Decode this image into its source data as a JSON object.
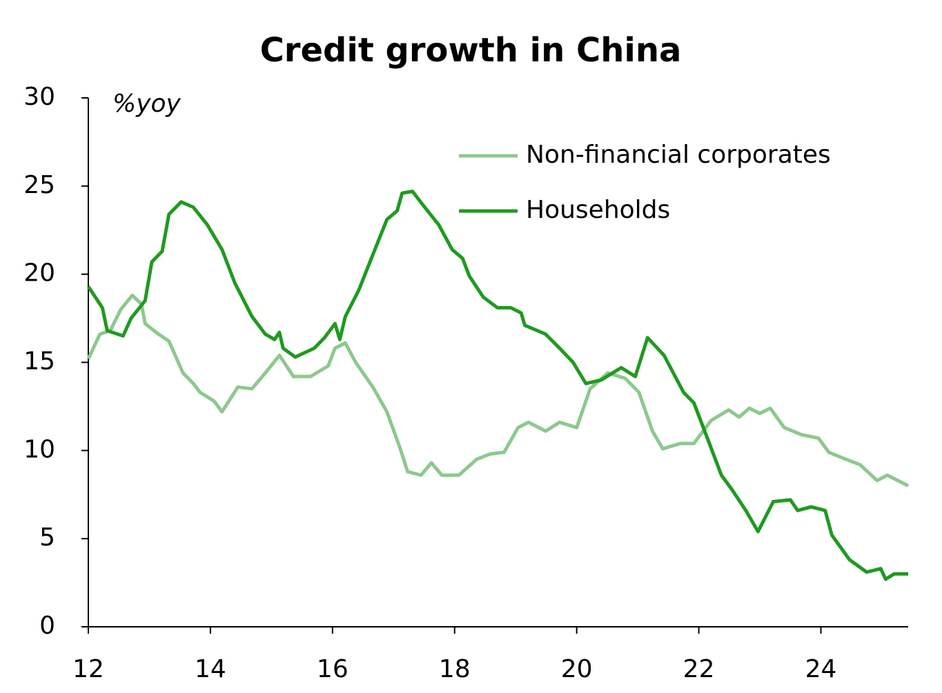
{
  "chart_data": {
    "type": "line",
    "title": "Credit growth in China",
    "ylabel": "%yoy",
    "xlim": [
      12,
      25.43
    ],
    "xticks": [
      12,
      14,
      16,
      18,
      20,
      22,
      24
    ],
    "ylim": [
      0,
      30
    ],
    "yticks": [
      0,
      5,
      10,
      15,
      20,
      25,
      30
    ],
    "legend": "upper right",
    "grid": false,
    "series": [
      {
        "name": "Non-financial corporates",
        "color": "#8cc98c",
        "x": [
          12.0,
          12.19,
          12.36,
          12.53,
          12.72,
          12.87,
          12.93,
          13.15,
          13.32,
          13.55,
          13.72,
          13.83,
          14.06,
          14.19,
          14.45,
          14.68,
          14.9,
          15.13,
          15.36,
          15.64,
          15.93,
          16.04,
          16.21,
          16.38,
          16.66,
          16.89,
          17.11,
          17.23,
          17.45,
          17.62,
          17.79,
          18.07,
          18.36,
          18.58,
          18.81,
          19.04,
          19.21,
          19.49,
          19.72,
          20.0,
          20.22,
          20.51,
          20.79,
          21.02,
          21.24,
          21.41,
          21.7,
          21.92,
          22.2,
          22.49,
          22.66,
          22.83,
          23.0,
          23.17,
          23.4,
          23.68,
          23.96,
          24.13,
          24.41,
          24.64,
          24.92,
          25.09,
          25.43
        ],
        "values": [
          15.2,
          16.6,
          16.8,
          18.0,
          18.8,
          18.3,
          17.2,
          16.6,
          16.2,
          14.4,
          13.8,
          13.3,
          12.8,
          12.2,
          13.6,
          13.5,
          14.4,
          15.4,
          14.2,
          14.2,
          14.8,
          15.8,
          16.1,
          15.0,
          13.6,
          12.2,
          10.1,
          8.8,
          8.6,
          9.3,
          8.6,
          8.6,
          9.5,
          9.8,
          9.9,
          11.3,
          11.6,
          11.1,
          11.6,
          11.3,
          13.5,
          14.4,
          14.1,
          13.3,
          11.1,
          10.1,
          10.4,
          10.4,
          11.7,
          12.3,
          11.9,
          12.4,
          12.1,
          12.4,
          11.3,
          10.9,
          10.7,
          9.9,
          9.5,
          9.2,
          8.3,
          8.6,
          8.0
        ]
      },
      {
        "name": "Households",
        "color": "#1f9a1f",
        "x": [
          12.0,
          12.23,
          12.31,
          12.57,
          12.7,
          12.93,
          13.04,
          13.21,
          13.32,
          13.52,
          13.72,
          13.95,
          14.19,
          14.4,
          14.68,
          14.9,
          15.05,
          15.13,
          15.19,
          15.39,
          15.7,
          15.87,
          16.04,
          16.12,
          16.21,
          16.43,
          16.66,
          16.89,
          17.06,
          17.14,
          17.31,
          17.51,
          17.74,
          17.96,
          18.13,
          18.24,
          18.47,
          18.7,
          18.92,
          19.09,
          19.15,
          19.49,
          19.72,
          19.94,
          20.15,
          20.4,
          20.73,
          20.96,
          21.16,
          21.43,
          21.75,
          21.92,
          22.14,
          22.37,
          22.54,
          22.77,
          22.97,
          23.22,
          23.5,
          23.62,
          23.84,
          24.07,
          24.18,
          24.47,
          24.75,
          24.98,
          25.06,
          25.2,
          25.43
        ],
        "values": [
          19.3,
          18.1,
          16.8,
          16.5,
          17.5,
          18.5,
          20.7,
          21.3,
          23.4,
          24.1,
          23.8,
          22.8,
          21.4,
          19.5,
          17.6,
          16.6,
          16.3,
          16.7,
          15.8,
          15.3,
          15.8,
          16.4,
          17.2,
          16.3,
          17.6,
          19.1,
          21.1,
          23.1,
          23.6,
          24.6,
          24.7,
          23.8,
          22.8,
          21.4,
          20.9,
          19.9,
          18.7,
          18.1,
          18.1,
          17.8,
          17.1,
          16.6,
          15.8,
          15.0,
          13.8,
          14.0,
          14.7,
          14.2,
          16.4,
          15.4,
          13.3,
          12.7,
          10.7,
          8.6,
          7.8,
          6.6,
          5.4,
          7.1,
          7.2,
          6.6,
          6.8,
          6.6,
          5.2,
          3.8,
          3.1,
          3.3,
          2.7,
          3.0,
          3.0
        ]
      }
    ]
  }
}
